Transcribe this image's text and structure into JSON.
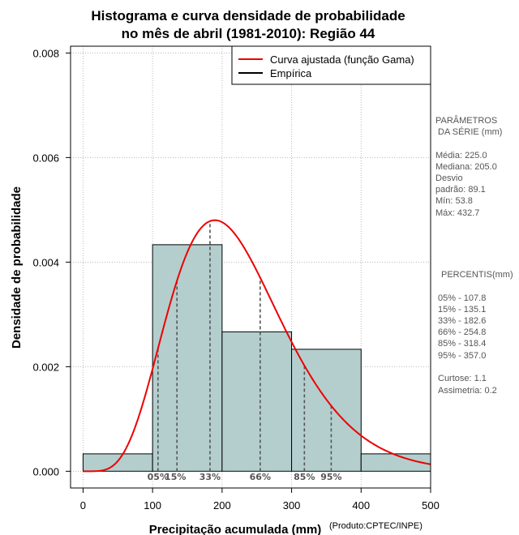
{
  "chart_data": {
    "type": "bar",
    "title_line1": "Histograma e curva densidade de probabilidade",
    "title_line2": "no mês de abril (1981-2010): Região 44",
    "xlabel": "Precipitação acumulada (mm)",
    "ylabel": "Densidade de probabilidade",
    "credit": "(Produto:CPTEC/INPE)",
    "xlim": [
      -18,
      500
    ],
    "ylim": [
      -0.00032,
      0.00813
    ],
    "x_ticks": [
      "0",
      "100",
      "200",
      "300",
      "400",
      "500"
    ],
    "x_tick_values": [
      0,
      100,
      200,
      300,
      400,
      500
    ],
    "y_ticks": [
      "0.000",
      "0.002",
      "0.004",
      "0.006",
      "0.008"
    ],
    "y_tick_values": [
      0,
      0.002,
      0.004,
      0.006,
      0.008
    ],
    "grid": true,
    "bins": [
      {
        "from": 0,
        "to": 100,
        "density": 0.000333
      },
      {
        "from": 100,
        "to": 200,
        "density": 0.004333
      },
      {
        "from": 200,
        "to": 300,
        "density": 0.002667
      },
      {
        "from": 300,
        "to": 400,
        "density": 0.002333
      },
      {
        "from": 400,
        "to": 500,
        "density": 0.000333
      }
    ],
    "bar_color": "#b4cece",
    "gamma_fit": {
      "shape": 6.37,
      "scale": 35.3,
      "color": "#ee0000"
    },
    "legend": {
      "placement": "top-right",
      "entries": [
        {
          "label": "Curva ajustada (função Gama)",
          "color": "#ee0000"
        },
        {
          "label": "Empírica",
          "color": "#000000"
        }
      ]
    },
    "percentile_lines": [
      {
        "label": "05%",
        "x": 107.8
      },
      {
        "label": "15%",
        "x": 135.1
      },
      {
        "label": "33%",
        "x": 182.6
      },
      {
        "label": "66%",
        "x": 254.8
      },
      {
        "label": "85%",
        "x": 318.4
      },
      {
        "label": "95%",
        "x": 357.0
      }
    ]
  },
  "stats": {
    "params_title_1": "PARÂMETROS",
    "params_title_2": "DA SÉRIE (mm)",
    "media": "Média:  225.0",
    "mediana": "Mediana:  205.0",
    "desvio_1": "Desvio",
    "desvio_2": "padrão:  89.1",
    "min": "Mín:  53.8",
    "max": "Máx:  432.7",
    "percentis_title": "PERCENTIS(mm)",
    "p05": "05% -  107.8",
    "p15": "15% -  135.1",
    "p33": "33% -  182.6",
    "p66": "66% -  254.8",
    "p85": "85% -  318.4",
    "p95": "95% -  357.0",
    "curtose": "Curtose:  1.1",
    "assimetria": "Assimetria:  0.2"
  }
}
